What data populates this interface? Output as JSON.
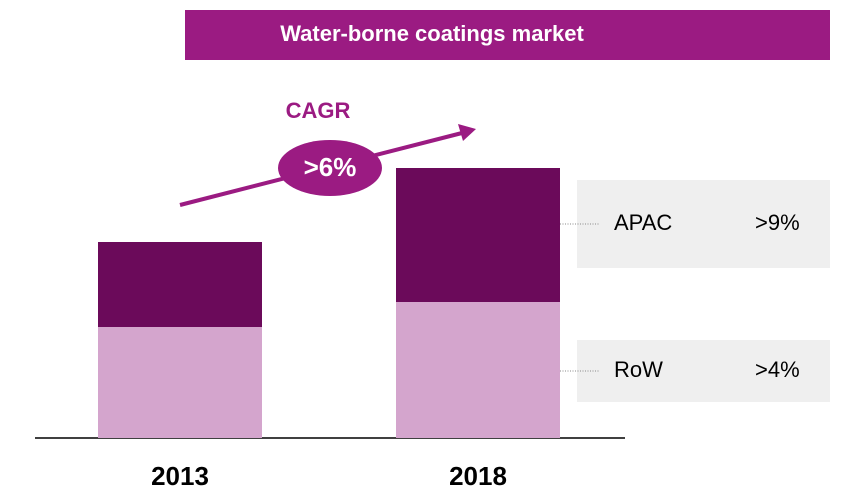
{
  "chart_data": {
    "type": "stacked_bar",
    "title": "Water-borne coatings market",
    "annotation": "CAGR",
    "annotation_value": ">6%",
    "categories": [
      "2013",
      "2018"
    ],
    "series": [
      {
        "name": "RoW",
        "growth": ">4%",
        "color": "#d4a5cd",
        "values": [
          111,
          136
        ]
      },
      {
        "name": "APAC",
        "growth": ">9%",
        "color": "#6b0a5a",
        "values": [
          85,
          134
        ]
      }
    ],
    "ylim": [
      0,
      300
    ]
  }
}
